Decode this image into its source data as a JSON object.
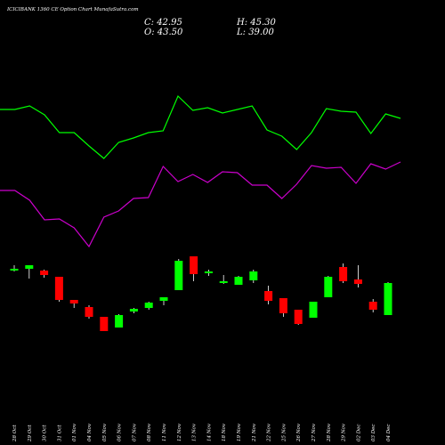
{
  "header": {
    "title": "ICICIBANK 1360 CE Option Chart MunafaSutra.com",
    "close": "C: 42.95",
    "open": "O: 43.50",
    "high": "H: 45.30",
    "low": "L: 39.00"
  },
  "colors": {
    "background": "#000000",
    "up": "#00ff00",
    "down": "#ff0000",
    "neutral": "#ffffff",
    "line_top": "#00ff00",
    "line_bottom": "#cc00cc"
  },
  "chart_data": {
    "type": "candlestick",
    "categories": [
      "28 Oct",
      "29 Oct",
      "30 Oct",
      "31 Oct",
      "01 Nov",
      "04 Nov",
      "05 Nov",
      "06 Nov",
      "07 Nov",
      "08 Nov",
      "11 Nov",
      "12 Nov",
      "13 Nov",
      "14 Nov",
      "18 Nov",
      "19 Nov",
      "21 Nov",
      "22 Nov",
      "25 Nov",
      "26 Nov",
      "27 Nov",
      "28 Nov",
      "29 Nov",
      "02 Dec",
      "03 Dec",
      "04 Dec"
    ],
    "ohlc_price_levels_unlabeled": [
      {
        "o": 118,
        "h": 122,
        "l": 115,
        "c": 118,
        "dir": "up"
      },
      {
        "o": 118,
        "h": 119,
        "l": 107,
        "c": 122,
        "dir": "up"
      },
      {
        "o": 116,
        "h": 117,
        "l": 108,
        "c": 111,
        "dir": "down"
      },
      {
        "o": 109,
        "h": 109,
        "l": 81,
        "c": 83,
        "dir": "down"
      },
      {
        "o": 83,
        "h": 83,
        "l": 74,
        "c": 79,
        "dir": "down"
      },
      {
        "o": 75,
        "h": 77,
        "l": 62,
        "c": 64,
        "dir": "down"
      },
      {
        "o": 64,
        "h": 64,
        "l": 48,
        "c": 48,
        "dir": "down"
      },
      {
        "o": 52,
        "h": 67,
        "l": 52,
        "c": 66,
        "dir": "up"
      },
      {
        "o": 70,
        "h": 74,
        "l": 68,
        "c": 73,
        "dir": "up"
      },
      {
        "o": 74,
        "h": 81,
        "l": 72,
        "c": 80,
        "dir": "up"
      },
      {
        "o": 82,
        "h": 86,
        "l": 77,
        "c": 86,
        "dir": "up"
      },
      {
        "o": 94,
        "h": 129,
        "l": 94,
        "c": 127,
        "dir": "up"
      },
      {
        "o": 132,
        "h": 132,
        "l": 104,
        "c": 112,
        "dir": "down"
      },
      {
        "o": 113,
        "h": 117,
        "l": 110,
        "c": 115,
        "dir": "up"
      },
      {
        "o": 104,
        "h": 111,
        "l": 101,
        "c": 104,
        "dir": "up"
      },
      {
        "o": 100,
        "h": 110,
        "l": 100,
        "c": 109,
        "dir": "up"
      },
      {
        "o": 105,
        "h": 117,
        "l": 102,
        "c": 115,
        "dir": "up"
      },
      {
        "o": 93,
        "h": 99,
        "l": 78,
        "c": 82,
        "dir": "down"
      },
      {
        "o": 85,
        "h": 85,
        "l": 64,
        "c": 68,
        "dir": "down"
      },
      {
        "o": 72,
        "h": 72,
        "l": 55,
        "c": 56,
        "dir": "down"
      },
      {
        "o": 63,
        "h": 81,
        "l": 63,
        "c": 81,
        "dir": "up"
      },
      {
        "o": 86,
        "h": 110,
        "l": 86,
        "c": 109,
        "dir": "up"
      },
      {
        "o": 120,
        "h": 124,
        "l": 102,
        "c": 104,
        "dir": "down"
      },
      {
        "o": 106,
        "h": 122,
        "l": 97,
        "c": 101,
        "dir": "down"
      },
      {
        "o": 81,
        "h": 84,
        "l": 69,
        "c": 72,
        "dir": "down"
      },
      {
        "o": 66,
        "h": 103,
        "l": 66,
        "c": 102,
        "dir": "up"
      }
    ],
    "line_top_levels": [
      297,
      297,
      301,
      291,
      271,
      271,
      256,
      242,
      260,
      265,
      271,
      273,
      312,
      296,
      299,
      293,
      297,
      301,
      274,
      267,
      252,
      271,
      298,
      295,
      294,
      270,
      292,
      287
    ],
    "line_bottom_levels": [
      206,
      206,
      195,
      173,
      174,
      164,
      143,
      176,
      183,
      197,
      198,
      233,
      216,
      224,
      215,
      227,
      226,
      212,
      212,
      197,
      213,
      234,
      231,
      232,
      214,
      236,
      230,
      238
    ],
    "ylim": [
      0,
      340
    ],
    "grid": false,
    "legend": "none"
  }
}
